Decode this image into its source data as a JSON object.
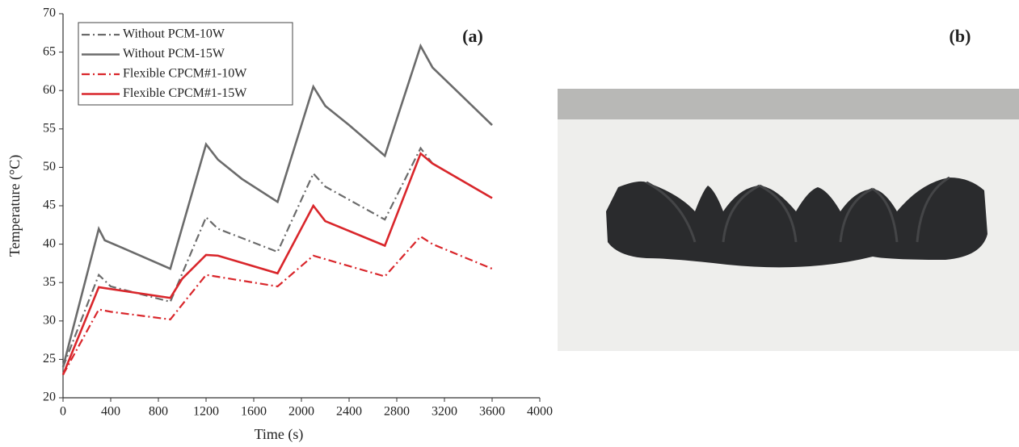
{
  "chart_data": {
    "type": "line",
    "x_label": "Time (s)",
    "y_label": "Temperature (°C)",
    "annotation": "(a)",
    "xlim": [
      0,
      4000
    ],
    "xticks": [
      0,
      400,
      800,
      1200,
      1600,
      2000,
      2400,
      2800,
      3200,
      3600,
      4000
    ],
    "ylim": [
      20,
      70
    ],
    "yticks": [
      20,
      25,
      30,
      35,
      40,
      45,
      50,
      55,
      60,
      65,
      70
    ],
    "legend": "upper left",
    "series": [
      {
        "name": "Without PCM-10W",
        "color": "#6b6b6b",
        "style": "dashdot",
        "x": [
          0,
          300,
          400,
          900,
          1200,
          1300,
          1800,
          2100,
          2200,
          2700,
          3000,
          3100,
          3600
        ],
        "values": [
          24,
          36,
          34.5,
          32.5,
          43.5,
          42,
          39,
          49.2,
          47.5,
          43.2,
          52.5,
          50.5,
          46
        ]
      },
      {
        "name": "Without PCM-15W",
        "color": "#6b6b6b",
        "style": "solid",
        "x": [
          0,
          300,
          350,
          500,
          900,
          1200,
          1300,
          1500,
          1800,
          2100,
          2200,
          2400,
          2700,
          3000,
          3100,
          3300,
          3600
        ],
        "values": [
          24,
          42,
          40.5,
          39.5,
          36.8,
          53,
          51,
          48.5,
          45.5,
          60.5,
          58,
          55.5,
          51.5,
          65.8,
          63,
          60,
          55.5
        ]
      },
      {
        "name": "Flexible CPCM#1-10W",
        "color": "#d9262b",
        "style": "dashdot",
        "x": [
          0,
          300,
          400,
          900,
          1200,
          1800,
          2100,
          2700,
          3000,
          3100,
          3600
        ],
        "values": [
          23,
          31.5,
          31.2,
          30.2,
          36,
          34.5,
          38.5,
          35.8,
          41,
          40,
          36.8
        ]
      },
      {
        "name": "Flexible CPCM#1-15W",
        "color": "#d9262b",
        "style": "solid",
        "x": [
          0,
          300,
          900,
          1000,
          1200,
          1300,
          1800,
          2100,
          2200,
          2700,
          3000,
          3100,
          3600
        ],
        "values": [
          23,
          34.4,
          33,
          35.5,
          38.6,
          38.5,
          36.2,
          45,
          43,
          39.8,
          51.8,
          50.5,
          46
        ]
      }
    ]
  },
  "panel_b": {
    "label": "(b)"
  }
}
